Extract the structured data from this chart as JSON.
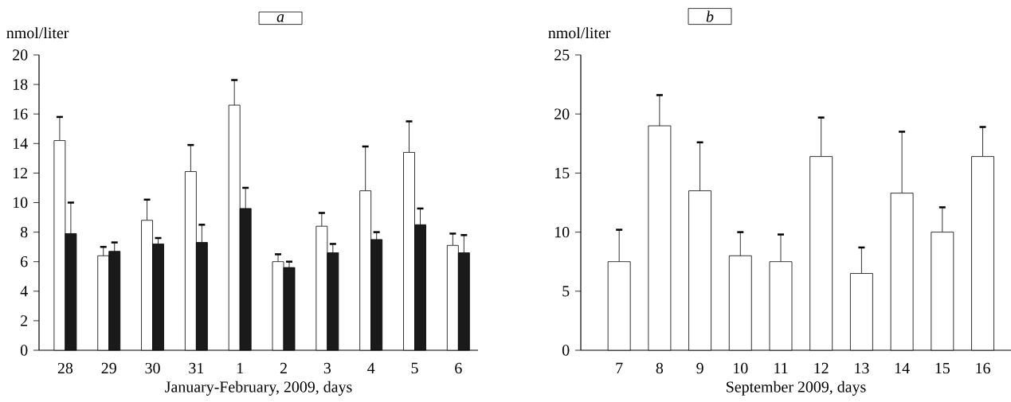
{
  "chart_data": [
    {
      "type": "bar",
      "title": "a",
      "ylabel": "nmol/liter",
      "xlabel": "January-February, 2009, days",
      "categories": [
        "28",
        "29",
        "30",
        "31",
        "1",
        "2",
        "3",
        "4",
        "5",
        "6"
      ],
      "ylim": [
        0,
        20
      ],
      "yticks": [
        0,
        2,
        4,
        6,
        8,
        10,
        12,
        14,
        16,
        18,
        20
      ],
      "series": [
        {
          "color": "#ffffff",
          "values": [
            14.2,
            6.4,
            8.8,
            12.1,
            16.6,
            6.0,
            8.4,
            10.8,
            13.4,
            7.1
          ],
          "errors": [
            1.6,
            0.6,
            1.4,
            1.8,
            1.7,
            0.5,
            0.9,
            3.0,
            2.1,
            0.8
          ]
        },
        {
          "color": "#1a1a1a",
          "values": [
            7.9,
            6.7,
            7.2,
            7.3,
            9.6,
            5.6,
            6.6,
            7.5,
            8.5,
            6.6
          ],
          "errors": [
            2.1,
            0.6,
            0.4,
            1.2,
            1.4,
            0.4,
            0.6,
            0.5,
            1.1,
            1.2
          ]
        }
      ]
    },
    {
      "type": "bar",
      "title": "b",
      "ylabel": "nmol/liter",
      "xlabel": "September 2009, days",
      "categories": [
        "7",
        "8",
        "9",
        "10",
        "11",
        "12",
        "13",
        "14",
        "15",
        "16"
      ],
      "ylim": [
        0,
        25
      ],
      "yticks": [
        0,
        5,
        10,
        15,
        20,
        25
      ],
      "series": [
        {
          "color": "#ffffff",
          "values": [
            7.5,
            19.0,
            13.5,
            8.0,
            7.5,
            16.4,
            6.5,
            13.3,
            10.0,
            16.4
          ],
          "errors": [
            2.7,
            2.6,
            4.1,
            2.0,
            2.3,
            3.3,
            2.2,
            5.2,
            2.1,
            2.5
          ]
        }
      ]
    }
  ]
}
